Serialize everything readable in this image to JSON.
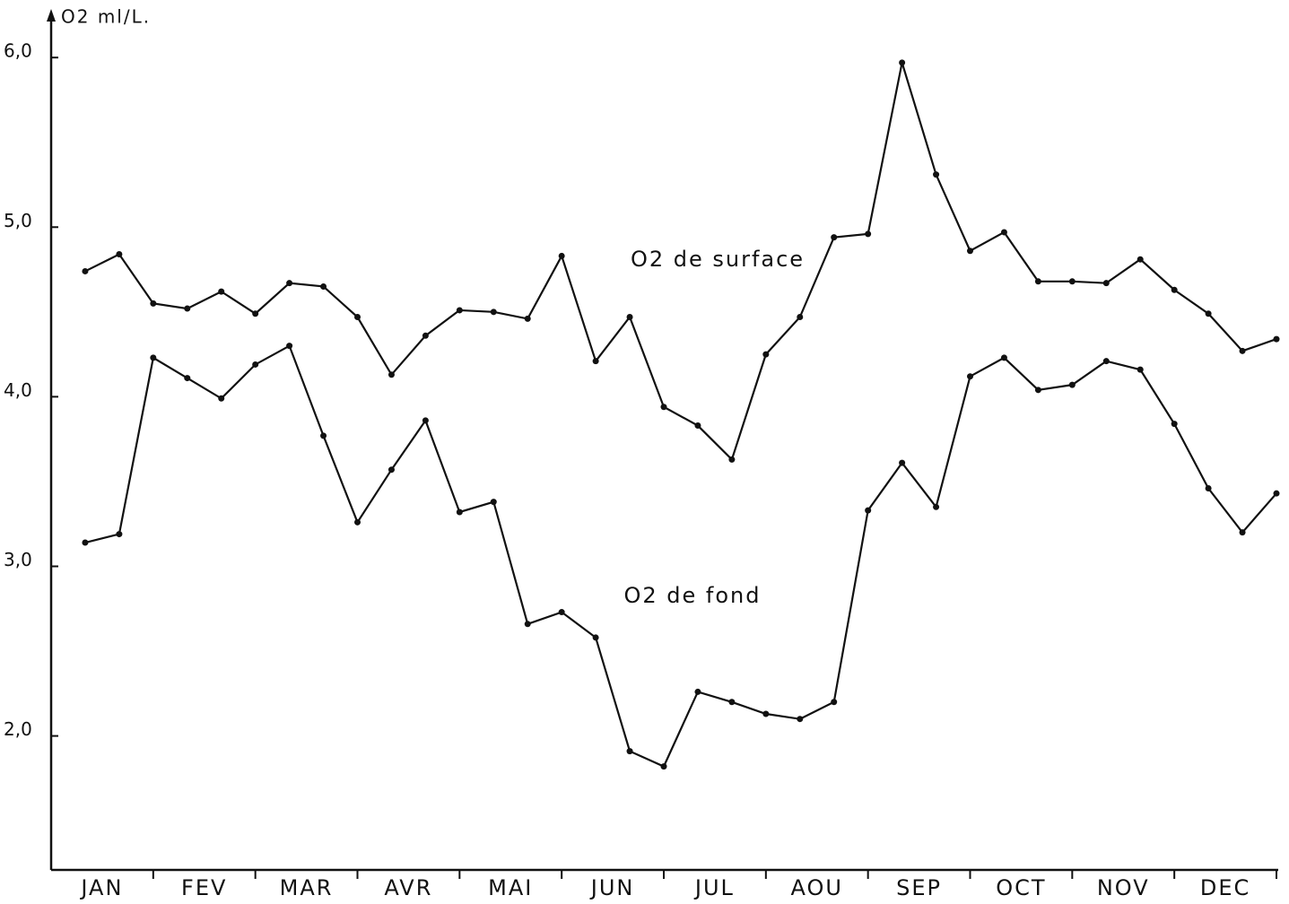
{
  "chart_data": {
    "type": "line",
    "y_axis_label": "O2 ml/L.",
    "month_labels": [
      "JAN",
      "FEV",
      "MAR",
      "AVR",
      "MAI",
      "JUN",
      "JUL",
      "AOU",
      "SEP",
      "OCT",
      "NOV",
      "DEC"
    ],
    "x": [
      1,
      2,
      3,
      4,
      5,
      6,
      7,
      8,
      9,
      10,
      11,
      12,
      13,
      14,
      15,
      16,
      17,
      18,
      19,
      20,
      21,
      22,
      23,
      24,
      25,
      26,
      27,
      28,
      29,
      30,
      31,
      32,
      33,
      34,
      35,
      36
    ],
    "xlim": [
      0,
      36
    ],
    "ylim": [
      1.21,
      6.26
    ],
    "yticks": [
      {
        "value": 2,
        "label": "2,0"
      },
      {
        "value": 3,
        "label": "3,0"
      },
      {
        "value": 4,
        "label": "4,0"
      },
      {
        "value": 5,
        "label": "5,0"
      },
      {
        "value": 6,
        "label": "6,0"
      }
    ],
    "series": [
      {
        "name": "O2 de surface",
        "color": "#111111",
        "values": [
          4.74,
          4.84,
          4.55,
          4.52,
          4.62,
          4.49,
          4.67,
          4.65,
          4.47,
          4.13,
          4.36,
          4.51,
          4.5,
          4.46,
          4.83,
          4.21,
          4.47,
          3.94,
          3.83,
          3.63,
          4.25,
          4.47,
          4.94,
          4.96,
          5.97,
          5.31,
          4.86,
          4.97,
          4.68,
          4.68,
          4.67,
          4.81,
          4.63,
          4.49,
          4.27,
          4.34
        ]
      },
      {
        "name": "O2 de fond",
        "color": "#111111",
        "values": [
          3.14,
          3.19,
          4.23,
          4.11,
          3.99,
          4.19,
          4.3,
          3.77,
          3.26,
          3.57,
          3.86,
          3.32,
          3.38,
          2.66,
          2.73,
          2.58,
          1.91,
          1.82,
          2.26,
          2.2,
          2.13,
          2.1,
          2.2,
          3.33,
          3.61,
          3.35,
          4.12,
          4.23,
          4.04,
          4.07,
          4.21,
          4.16,
          3.84,
          3.46,
          3.2,
          3.43
        ]
      }
    ]
  }
}
